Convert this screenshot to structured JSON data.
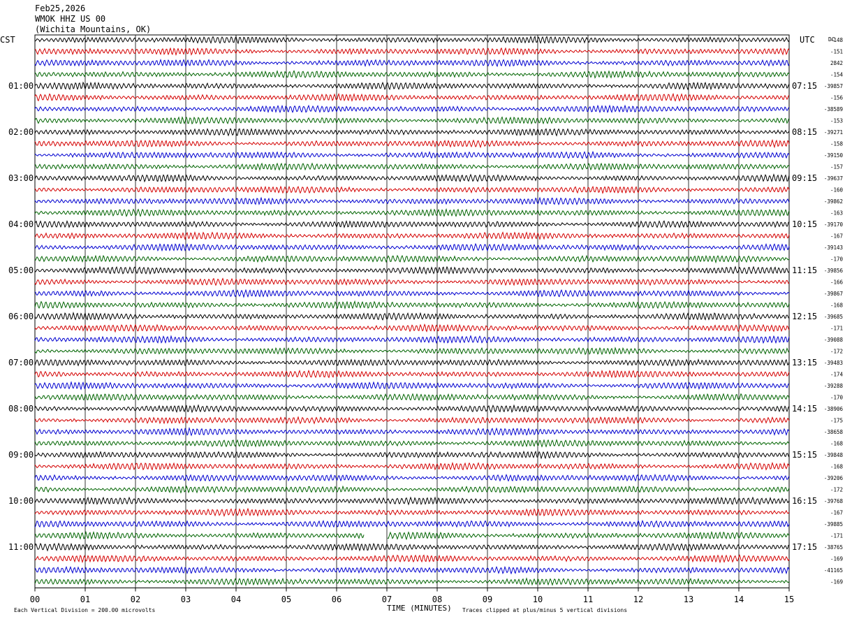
{
  "header": {
    "date": "Feb25,2026",
    "station": "WMOK HHZ US 00",
    "location": "(Wichita Mountains, OK)"
  },
  "left_tz": "CST",
  "right_tz": "UTC",
  "dc_label": "DC",
  "colors": {
    "series": [
      "#000000",
      "#d40000",
      "#0000d0",
      "#006400"
    ],
    "grid": "#000000"
  },
  "chart_data": {
    "type": "line",
    "title": "",
    "xlabel": "TIME (MINUTES)",
    "x_ticks": [
      "00",
      "01",
      "02",
      "03",
      "04",
      "05",
      "06",
      "07",
      "08",
      "09",
      "10",
      "11",
      "12",
      "13",
      "14",
      "15"
    ],
    "xlim": [
      0,
      15
    ],
    "rows_per_hour": 4,
    "row_count": 48,
    "left_hour_labels": [
      "01:00",
      "02:00",
      "03:00",
      "04:00",
      "05:00",
      "06:00",
      "07:00",
      "08:00",
      "09:00",
      "10:00",
      "11:00"
    ],
    "right_hour_labels": [
      "07:15",
      "08:15",
      "09:15",
      "10:15",
      "11:15",
      "12:15",
      "13:15",
      "14:15",
      "15:15",
      "16:15",
      "17:15"
    ],
    "dc_values": [
      "-148",
      "-151",
      "2842",
      "-154",
      "-39857",
      "-156",
      "-38589",
      "-153",
      "-39271",
      "-158",
      "-39150",
      "-157",
      "-39637",
      "-160",
      "-39862",
      "-163",
      "-39170",
      "-167",
      "-39143",
      "-170",
      "-39856",
      "-166",
      "-39867",
      "-168",
      "-39685",
      "-171",
      "-39088",
      "-172",
      "-39483",
      "-174",
      "-39288",
      "-170",
      "-38906",
      "-175",
      "-38658",
      "-168",
      "-39848",
      "-168",
      "-39206",
      "-172",
      "-39768",
      "-167",
      "-39885",
      "-171",
      "-38765",
      "-169",
      "-41165",
      "-169"
    ],
    "gaps": [
      {
        "row": 43,
        "from_minute": 6.55,
        "to_minute": 7.0
      }
    ]
  },
  "footer": {
    "scale_note": "Each Vertical Division =  200.00 microvolts",
    "clip_note": "Traces clipped at plus/minus 5 vertical divisions"
  }
}
